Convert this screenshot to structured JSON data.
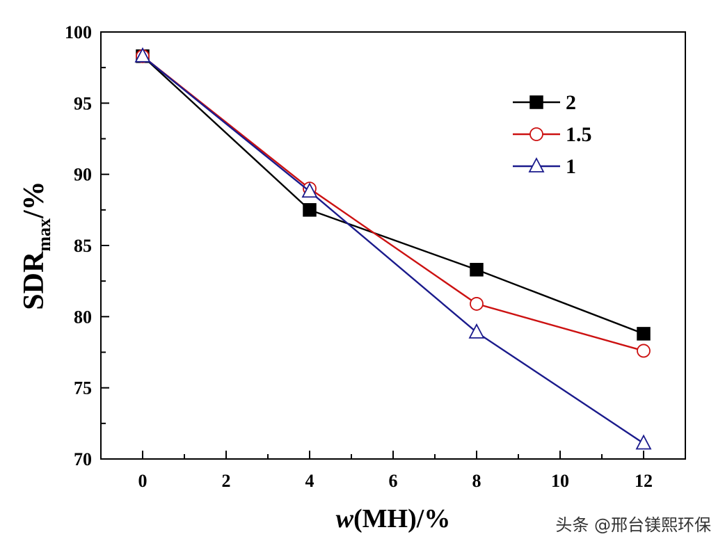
{
  "chart_data": {
    "type": "line",
    "xlabel_italic": "w",
    "xlabel_rest": "(MH)/%",
    "ylabel_main": "SDR",
    "ylabel_sub": "max",
    "ylabel_unit": "/%",
    "xlim": [
      -1,
      13
    ],
    "ylim": [
      70,
      100
    ],
    "xticks": [
      0,
      2,
      4,
      6,
      8,
      10,
      12
    ],
    "yticks": [
      70,
      75,
      80,
      85,
      90,
      95,
      100
    ],
    "x": [
      0,
      4,
      8,
      12
    ],
    "legend_position": "top-right",
    "grid": false,
    "series": [
      {
        "name": "2",
        "values": [
          98.3,
          87.5,
          83.3,
          78.8
        ],
        "color": "#000000",
        "marker": "filled-square"
      },
      {
        "name": "1.5",
        "values": [
          98.3,
          89.0,
          80.9,
          77.6
        ],
        "color": "#cc1111",
        "marker": "open-circle"
      },
      {
        "name": "1",
        "values": [
          98.3,
          88.8,
          78.9,
          71.1
        ],
        "color": "#1a1a8c",
        "marker": "open-triangle"
      }
    ]
  },
  "watermark": "头条 @邢台镁熙环保"
}
